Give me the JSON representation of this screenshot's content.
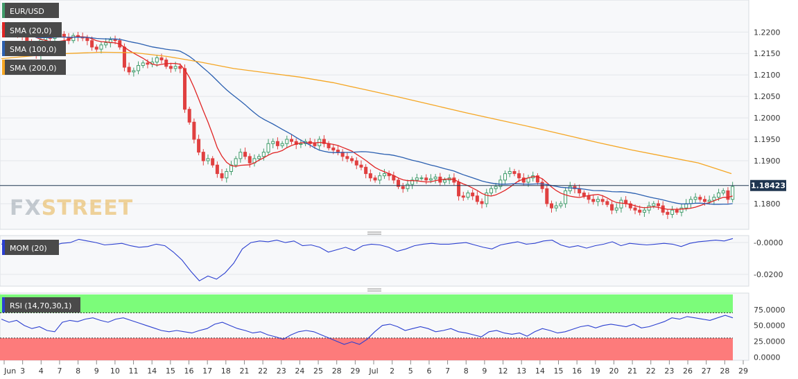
{
  "colors": {
    "background": "#ffffff",
    "panel_bg": "#f7f8fa",
    "grid": "#e3e6ea",
    "candle_up": "#3f9b6a",
    "candle_down": "#e04040",
    "sma20": "#e02424",
    "sma100": "#2a5fb0",
    "sma200": "#f5a623",
    "mom": "#2b3fd0",
    "rsi": "#2b3fd0",
    "overbought": "#7cfc7a",
    "oversold": "#fd7b7b",
    "price_line": "#1f3550",
    "legend_bg": "#4a4a4a",
    "label_text": "#333333"
  },
  "chart_data": [
    {
      "type": "candlestick",
      "panel": "price",
      "symbol": "EUR/USD",
      "last_price_label": "1.18423",
      "last_price": 1.18423,
      "ylim": [
        1.1745,
        1.2265
      ],
      "y_ticks": [
        1.22,
        1.215,
        1.21,
        1.205,
        1.2,
        1.195,
        1.19,
        1.18
      ],
      "y_tick_labels": [
        "1.2200",
        "1.2150",
        "1.2100",
        "1.2050",
        "1.2000",
        "1.1950",
        "1.1900",
        "1.1800"
      ],
      "x_labels": [
        "Jun",
        "3",
        "4",
        "7",
        "8",
        "9",
        "10",
        "11",
        "14",
        "15",
        "16",
        "17",
        "18",
        "21",
        "22",
        "23",
        "24",
        "25",
        "28",
        "29",
        "Jul",
        "2",
        "5",
        "6",
        "7",
        "8",
        "9",
        "12",
        "13",
        "14",
        "15",
        "16",
        "19",
        "20",
        "21",
        "22",
        "23",
        "26",
        "27",
        "28",
        "29"
      ],
      "close": [
        1.2215,
        1.2212,
        1.2208,
        1.2197,
        1.2189,
        1.2175,
        1.2158,
        1.2145,
        1.2182,
        1.219,
        1.2185,
        1.2196,
        1.2195,
        1.2188,
        1.218,
        1.2192,
        1.2188,
        1.2186,
        1.218,
        1.2165,
        1.216,
        1.217,
        1.2175,
        1.2182,
        1.218,
        1.2165,
        1.2118,
        1.2107,
        1.211,
        1.2122,
        1.2128,
        1.2125,
        1.213,
        1.214,
        1.2135,
        1.212,
        1.2115,
        1.212,
        1.2115,
        1.202,
        1.199,
        1.195,
        1.192,
        1.19,
        1.1905,
        1.189,
        1.187,
        1.186,
        1.1875,
        1.189,
        1.1905,
        1.192,
        1.191,
        1.1895,
        1.1905,
        1.191,
        1.192,
        1.194,
        1.1945,
        1.1935,
        1.194,
        1.195,
        1.1945,
        1.1938,
        1.194,
        1.1945,
        1.194,
        1.1935,
        1.195,
        1.194,
        1.193,
        1.1925,
        1.192,
        1.191,
        1.1905,
        1.19,
        1.189,
        1.1885,
        1.187,
        1.186,
        1.1855,
        1.1865,
        1.187,
        1.1865,
        1.1855,
        1.184,
        1.1835,
        1.1845,
        1.1855,
        1.186,
        1.186,
        1.1855,
        1.1858,
        1.1862,
        1.185,
        1.1855,
        1.186,
        1.185,
        1.1818,
        1.1815,
        1.1825,
        1.1818,
        1.1805,
        1.18,
        1.1825,
        1.1835,
        1.184,
        1.1855,
        1.187,
        1.1875,
        1.187,
        1.186,
        1.185,
        1.186,
        1.1865,
        1.185,
        1.1835,
        1.18,
        1.179,
        1.1795,
        1.18,
        1.183,
        1.184,
        1.1835,
        1.1825,
        1.1818,
        1.181,
        1.1805,
        1.181,
        1.1805,
        1.1798,
        1.1785,
        1.179,
        1.1808,
        1.18,
        1.179,
        1.1785,
        1.178,
        1.1785,
        1.1795,
        1.18,
        1.1795,
        1.178,
        1.1775,
        1.1785,
        1.178,
        1.179,
        1.18,
        1.181,
        1.1815,
        1.181,
        1.1805,
        1.1808,
        1.1815,
        1.1825,
        1.183,
        1.181,
        1.184
      ],
      "series": [
        {
          "name": "SMA (20,0)",
          "period": 20
        },
        {
          "name": "SMA (100,0)",
          "period": 100
        },
        {
          "name": "SMA (200,0)",
          "period": 200
        }
      ],
      "sma200_path": [
        1.2138,
        1.2145,
        1.215,
        1.2153,
        1.2152,
        1.2143,
        1.213,
        1.2115,
        1.2105,
        1.2095,
        1.2082,
        1.2065,
        1.2048,
        1.203,
        1.2012,
        1.1995,
        1.1978,
        1.196,
        1.1942,
        1.1925,
        1.191,
        1.1895,
        1.187
      ]
    },
    {
      "type": "line",
      "panel": "momentum",
      "name": "MOM (20)",
      "ylim": [
        -0.0265,
        0.0035
      ],
      "y_ticks": [
        0.0,
        -0.02
      ],
      "y_tick_labels": [
        "-0.0000",
        "-0.0200"
      ],
      "values": [
        -0.001,
        0.0,
        -0.002,
        -0.0035,
        -0.003,
        -0.0015,
        -0.002,
        -0.0005,
        0.0,
        0.002,
        0.001,
        0.0,
        -0.0015,
        -0.001,
        -0.0005,
        -0.002,
        -0.003,
        -0.0025,
        -0.001,
        -0.002,
        -0.006,
        -0.011,
        -0.018,
        -0.024,
        -0.021,
        -0.023,
        -0.019,
        -0.013,
        -0.004,
        0.0,
        0.001,
        0.0005,
        0.0015,
        0.0,
        0.001,
        -0.002,
        -0.0015,
        -0.003,
        -0.006,
        -0.0045,
        -0.003,
        -0.005,
        -0.002,
        -0.001,
        -0.0015,
        -0.003,
        -0.0055,
        -0.004,
        -0.002,
        -0.001,
        -0.0005,
        -0.001,
        -0.001,
        -0.0005,
        0.0,
        -0.0015,
        -0.003,
        -0.004,
        -0.0015,
        -0.0005,
        0.0005,
        -0.001,
        -0.0005,
        0.001,
        0.0015,
        -0.0015,
        -0.003,
        -0.002,
        -0.0035,
        -0.002,
        -0.001,
        0.0005,
        -0.002,
        -0.0005,
        -0.001,
        -0.0015,
        -0.001,
        -0.0005,
        -0.001,
        -0.0025,
        -0.0005,
        0.0005,
        0.001,
        0.0015,
        0.001,
        0.0025
      ]
    },
    {
      "type": "line",
      "panel": "rsi",
      "name": "RSI (14,70,30,1)",
      "ylim": [
        -3,
        99
      ],
      "overbought": 70,
      "oversold": 30,
      "y_ticks": [
        75,
        50,
        25,
        0
      ],
      "y_tick_labels": [
        "75.0000",
        "50.0000",
        "25.0000",
        "0.0000"
      ],
      "values": [
        60,
        55,
        58,
        50,
        45,
        48,
        42,
        40,
        55,
        58,
        56,
        60,
        62,
        58,
        55,
        60,
        62,
        58,
        54,
        50,
        46,
        42,
        40,
        42,
        40,
        38,
        42,
        45,
        52,
        55,
        50,
        45,
        42,
        38,
        40,
        35,
        32,
        28,
        35,
        40,
        42,
        40,
        35,
        30,
        25,
        20,
        24,
        20,
        28,
        40,
        50,
        52,
        48,
        42,
        45,
        48,
        45,
        40,
        42,
        45,
        40,
        38,
        35,
        32,
        40,
        42,
        38,
        36,
        38,
        33,
        40,
        45,
        42,
        38,
        40,
        44,
        48,
        50,
        46,
        50,
        52,
        50,
        48,
        52,
        46,
        48,
        52,
        56,
        62,
        60,
        64,
        62,
        60,
        58,
        62,
        66,
        62
      ]
    }
  ],
  "legend": {
    "pair": "EUR/USD",
    "sma20": "SMA (20,0)",
    "sma100": "SMA (100,0)",
    "sma200": "SMA (200,0)",
    "mom": "MOM (20)",
    "rsi": "RSI (14,70,30,1)"
  },
  "watermark": {
    "fx": "FX",
    "street": "STREET"
  }
}
